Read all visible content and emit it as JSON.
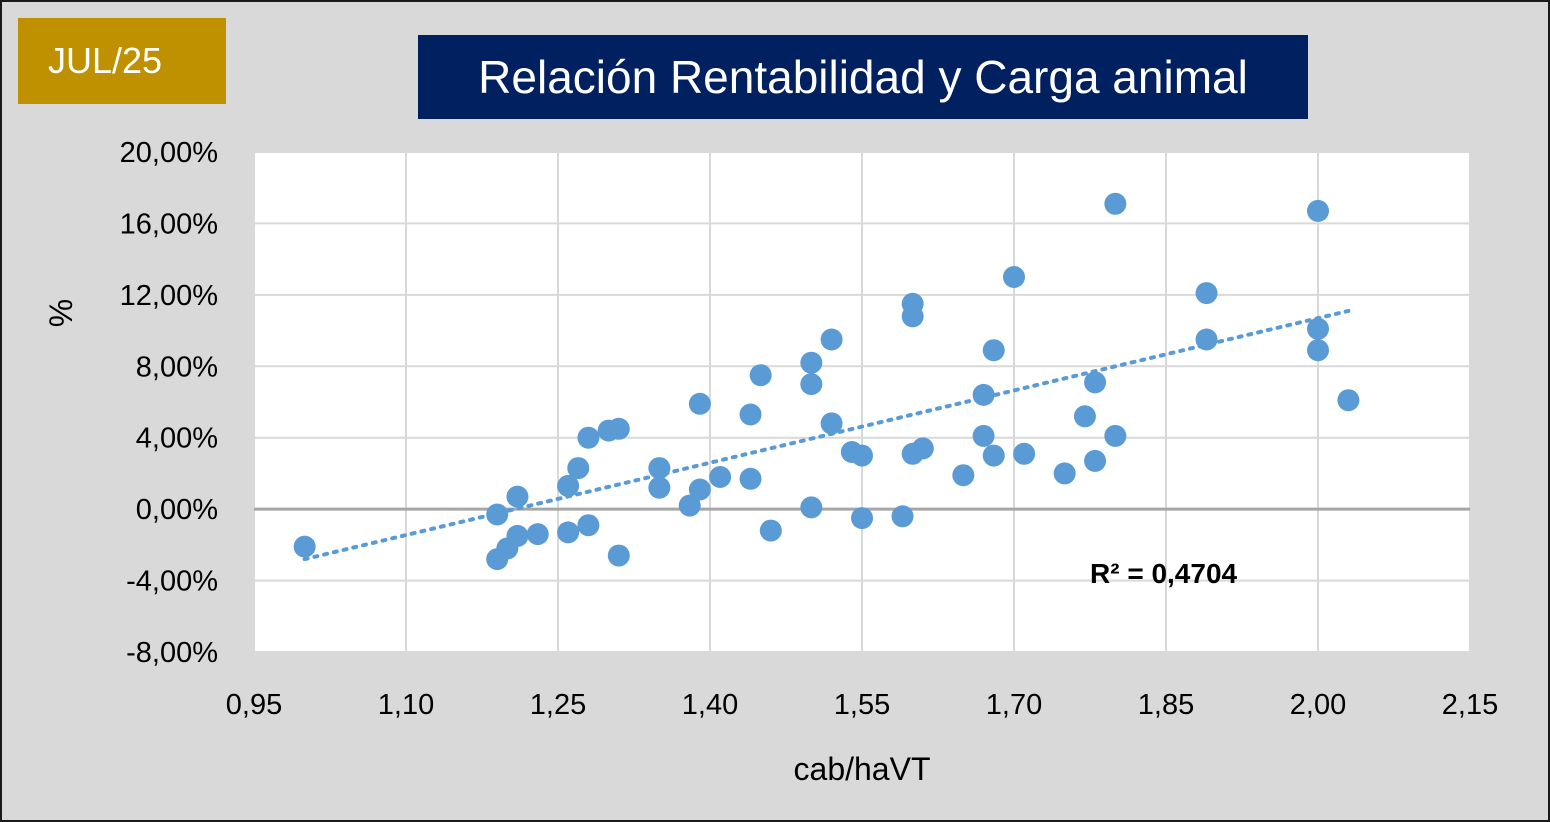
{
  "badge": {
    "text": "JUL/25",
    "color": "#bf9000"
  },
  "chart_data": {
    "type": "scatter",
    "title": "Relación Rentabilidad y Carga animal",
    "xlabel": "cab/haVT",
    "ylabel": "%",
    "xlim": [
      0.95,
      2.15
    ],
    "ylim": [
      -8,
      20
    ],
    "x_ticks": [
      "0,95",
      "1,10",
      "1,25",
      "1,40",
      "1,55",
      "1,70",
      "1,85",
      "2,00",
      "2,15"
    ],
    "y_ticks": [
      "20,00%",
      "16,00%",
      "12,00%",
      "8,00%",
      "4,00%",
      "0,00%",
      "-4,00%",
      "-8,00%"
    ],
    "grid": true,
    "point_color": "#5b9bd5",
    "annotation": "R² = 0,4704",
    "trendline": {
      "type": "linear",
      "color": "#5b9bd5",
      "x_range": [
        1.0,
        2.03
      ],
      "y_start": -2.8,
      "y_end": 11.1
    },
    "points": [
      {
        "x": 1.0,
        "y": -2.1
      },
      {
        "x": 1.19,
        "y": -2.8
      },
      {
        "x": 1.2,
        "y": -2.2
      },
      {
        "x": 1.19,
        "y": -0.3
      },
      {
        "x": 1.21,
        "y": -1.5
      },
      {
        "x": 1.21,
        "y": 0.7
      },
      {
        "x": 1.23,
        "y": -1.4
      },
      {
        "x": 1.26,
        "y": -1.3
      },
      {
        "x": 1.26,
        "y": 1.3
      },
      {
        "x": 1.27,
        "y": 2.3
      },
      {
        "x": 1.28,
        "y": -0.9
      },
      {
        "x": 1.28,
        "y": 4.0
      },
      {
        "x": 1.3,
        "y": 4.4
      },
      {
        "x": 1.31,
        "y": 4.5
      },
      {
        "x": 1.31,
        "y": -2.6
      },
      {
        "x": 1.35,
        "y": 1.2
      },
      {
        "x": 1.35,
        "y": 2.3
      },
      {
        "x": 1.38,
        "y": 0.2
      },
      {
        "x": 1.39,
        "y": 1.1
      },
      {
        "x": 1.39,
        "y": 5.9
      },
      {
        "x": 1.41,
        "y": 1.8
      },
      {
        "x": 1.44,
        "y": 1.7
      },
      {
        "x": 1.44,
        "y": 5.3
      },
      {
        "x": 1.45,
        "y": 7.5
      },
      {
        "x": 1.46,
        "y": -1.2
      },
      {
        "x": 1.5,
        "y": 7.0
      },
      {
        "x": 1.5,
        "y": 8.2
      },
      {
        "x": 1.5,
        "y": 0.1
      },
      {
        "x": 1.52,
        "y": 9.5
      },
      {
        "x": 1.52,
        "y": 4.8
      },
      {
        "x": 1.54,
        "y": 3.2
      },
      {
        "x": 1.55,
        "y": 3.0
      },
      {
        "x": 1.55,
        "y": -0.5
      },
      {
        "x": 1.59,
        "y": -0.4
      },
      {
        "x": 1.6,
        "y": 3.1
      },
      {
        "x": 1.6,
        "y": 11.5
      },
      {
        "x": 1.6,
        "y": 10.8
      },
      {
        "x": 1.61,
        "y": 3.4
      },
      {
        "x": 1.65,
        "y": 1.9
      },
      {
        "x": 1.67,
        "y": 4.1
      },
      {
        "x": 1.67,
        "y": 6.4
      },
      {
        "x": 1.68,
        "y": 8.9
      },
      {
        "x": 1.68,
        "y": 3.0
      },
      {
        "x": 1.7,
        "y": 13.0
      },
      {
        "x": 1.71,
        "y": 3.1
      },
      {
        "x": 1.75,
        "y": 2.0
      },
      {
        "x": 1.77,
        "y": 5.2
      },
      {
        "x": 1.78,
        "y": 7.1
      },
      {
        "x": 1.78,
        "y": 2.7
      },
      {
        "x": 1.8,
        "y": 4.1
      },
      {
        "x": 1.8,
        "y": 17.1
      },
      {
        "x": 1.89,
        "y": 12.1
      },
      {
        "x": 1.89,
        "y": 9.5
      },
      {
        "x": 2.0,
        "y": 16.7
      },
      {
        "x": 2.0,
        "y": 10.1
      },
      {
        "x": 2.0,
        "y": 8.9
      },
      {
        "x": 2.03,
        "y": 6.1
      }
    ]
  }
}
